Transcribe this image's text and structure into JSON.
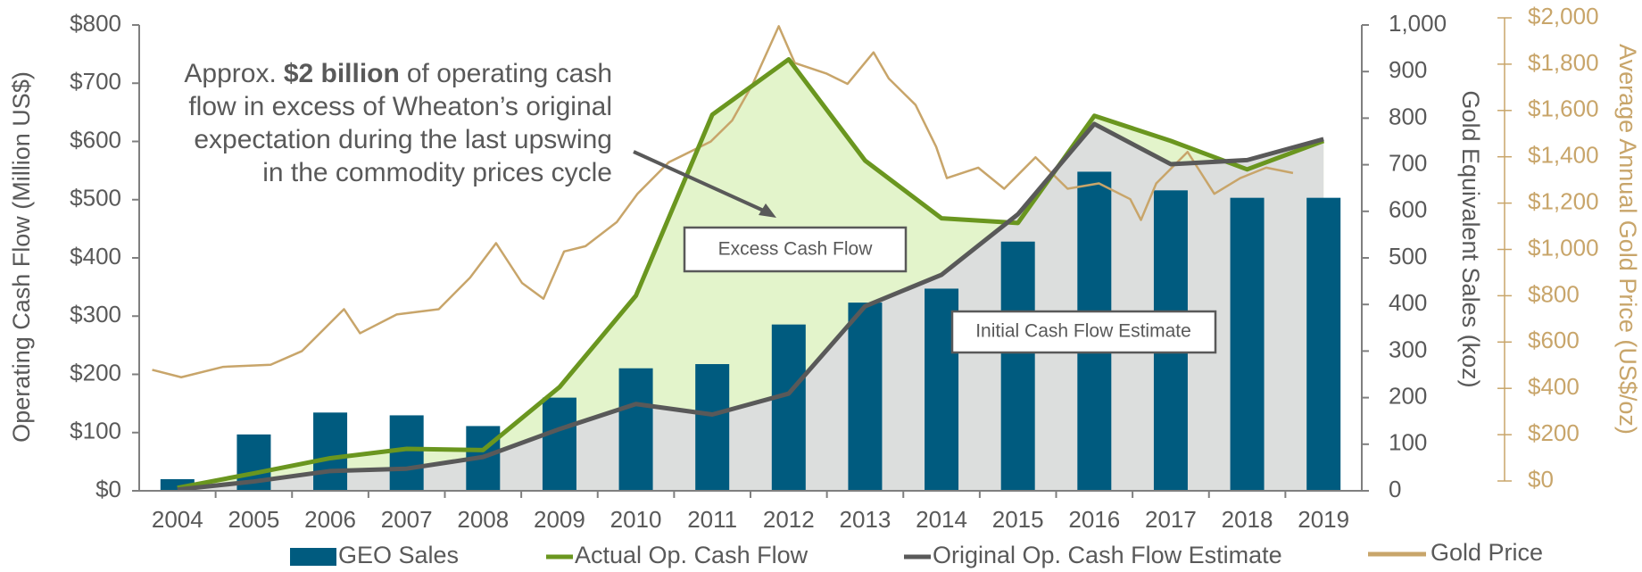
{
  "chart_data": {
    "type": "bar-line",
    "categories": [
      "2004",
      "2005",
      "2006",
      "2007",
      "2008",
      "2009",
      "2010",
      "2011",
      "2012",
      "2013",
      "2014",
      "2015",
      "2016",
      "2017",
      "2018",
      "2019"
    ],
    "series": [
      {
        "name": "GEO Sales",
        "type": "bar",
        "axis": "y2",
        "color": "#005b7f",
        "values": [
          25,
          121,
          168,
          162,
          139,
          200,
          263,
          272,
          357,
          404,
          434,
          535,
          685,
          645,
          629,
          629
        ]
      },
      {
        "name": "Actual Op. Cash Flow",
        "type": "line",
        "axis": "y",
        "color": "#6a961f",
        "fill": "#e3f4cb",
        "values": [
          5,
          30,
          56,
          72,
          70,
          178,
          335,
          646,
          741,
          567,
          468,
          460,
          644,
          601,
          552,
          601
        ]
      },
      {
        "name": "Original Op. Cash Flow Estimate",
        "type": "line",
        "axis": "y",
        "color": "#595959",
        "fill": "#dcdedd",
        "values": [
          2,
          16,
          34,
          38,
          58,
          106,
          149,
          131,
          167,
          317,
          371,
          475,
          630,
          561,
          568,
          604
        ]
      },
      {
        "name": "Gold Price",
        "type": "xyline",
        "axis": "y3",
        "color": "#c8a56a",
        "x": [
          2003.67,
          2004.05,
          2004.6,
          2005.22,
          2005.63,
          2006.18,
          2006.39,
          2006.87,
          2007.42,
          2007.83,
          2008.17,
          2008.51,
          2008.79,
          2009.06,
          2009.34,
          2009.75,
          2010.02,
          2010.43,
          2010.98,
          2011.26,
          2011.53,
          2011.87,
          2012.08,
          2012.49,
          2012.77,
          2013.11,
          2013.31,
          2013.66,
          2013.93,
          2014.07,
          2014.48,
          2014.82,
          2015.23,
          2015.65,
          2016.06,
          2016.47,
          2016.61,
          2016.81,
          2017.22,
          2017.57,
          2017.91,
          2018.25,
          2018.6
        ],
        "values": [
          480,
          448,
          493,
          502,
          561,
          742,
          638,
          719,
          742,
          878,
          1027,
          855,
          787,
          991,
          1014,
          1118,
          1240,
          1376,
          1466,
          1557,
          1715,
          1964,
          1805,
          1760,
          1715,
          1851,
          1738,
          1624,
          1443,
          1308,
          1353,
          1262,
          1398,
          1262,
          1285,
          1217,
          1127,
          1285,
          1421,
          1240,
          1308,
          1353,
          1330
        ]
      }
    ],
    "ylabel": "Operating Cash Flow  (Million US$)",
    "y2label": "Gold Equivalent Sales (koz)",
    "y3label": "Average Annual Gold Price (US$/oz)",
    "ylim": [
      0,
      800
    ],
    "yticks": [
      {
        "value": 0,
        "label": "$0"
      },
      {
        "value": 100,
        "label": "$100"
      },
      {
        "value": 200,
        "label": "$200"
      },
      {
        "value": 300,
        "label": "$300"
      },
      {
        "value": 400,
        "label": "$400"
      },
      {
        "value": 500,
        "label": "$500"
      },
      {
        "value": 600,
        "label": "$600"
      },
      {
        "value": 700,
        "label": "$700"
      },
      {
        "value": 800,
        "label": "$800"
      }
    ],
    "y2lim": [
      0,
      1000
    ],
    "y2ticks": [
      0,
      100,
      200,
      300,
      400,
      500,
      600,
      700,
      800,
      900,
      {
        "value": 1000,
        "label": "1,000"
      }
    ],
    "y3lim": [
      0,
      2000
    ],
    "y3ticks": [
      {
        "value": 0,
        "label": "$0"
      },
      {
        "value": 200,
        "label": "$200"
      },
      {
        "value": 400,
        "label": "$400"
      },
      {
        "value": 600,
        "label": "$600"
      },
      {
        "value": 800,
        "label": "$800"
      },
      {
        "value": 1000,
        "label": "$1,000"
      },
      {
        "value": 1200,
        "label": "$1,200"
      },
      {
        "value": 1400,
        "label": "$1,400"
      },
      {
        "value": 1600,
        "label": "$1,600"
      },
      {
        "value": 1800,
        "label": "$1,800"
      },
      {
        "value": 2000,
        "label": "$2,000"
      }
    ],
    "y3color": "#c8a56a",
    "annotation": {
      "lines": [
        [
          "Approx.",
          "$2 billion",
          "of operating cash"
        ],
        "flow in excess of Wheaton’s original",
        "expectation during the last upswing",
        "in the commodity prices cycle"
      ]
    },
    "boxes": [
      "Excess Cash Flow",
      "Initial Cash Flow Estimate"
    ]
  }
}
